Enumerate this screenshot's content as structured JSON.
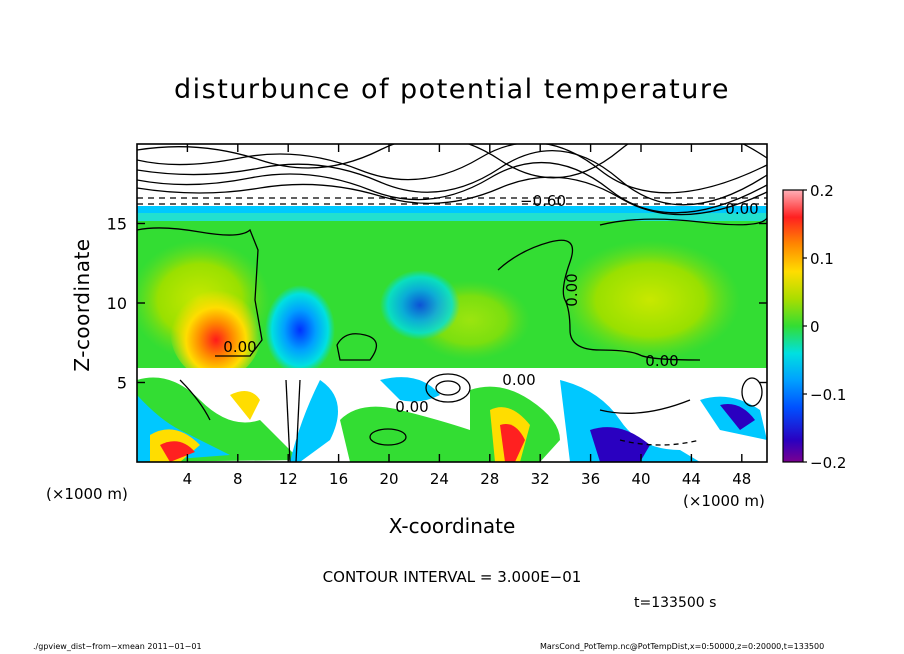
{
  "title": "disturbunce of potential temperature",
  "chart_data": {
    "type": "heatmap",
    "title": "disturbunce of potential temperature",
    "xlabel": "X-coordinate",
    "ylabel": "Z-coordinate",
    "x_unit": "(×1000 m)",
    "xlim": [
      0,
      50
    ],
    "ylim": [
      0,
      20
    ],
    "x_ticks": [
      4,
      8,
      12,
      16,
      20,
      24,
      28,
      32,
      36,
      40,
      44,
      48
    ],
    "y_ticks": [
      5,
      10,
      15
    ],
    "colorbar": {
      "range": [
        -0.2,
        0.2
      ],
      "ticks": [
        0.2,
        0.1,
        0,
        -0.1,
        -0.2
      ],
      "tick_labels": [
        "0.2",
        "0.1",
        "0",
        "−0.1",
        "−0.2"
      ]
    },
    "contour_labels": [
      "−0.60",
      "0.00",
      "0.00",
      "0.00",
      "0.00",
      "0.00",
      "0.00"
    ],
    "contour_interval": "CONTOUR INTERVAL = 3.000E−01",
    "time": "t=133500 s",
    "colors": {
      "positive_max": "#ff1a1a",
      "positive_mid": "#ffcc00",
      "zero": "#33dd33",
      "negative_mid": "#00c8ff",
      "negative_max": "#2a00c0",
      "saturated": "#ffffff"
    }
  },
  "footer": {
    "left": "./gpview_dist−from−xmean   2011−01−01",
    "right": "MarsCond_PotTemp.nc@PotTempDist,x=0:50000,z=0:20000,t=133500"
  }
}
